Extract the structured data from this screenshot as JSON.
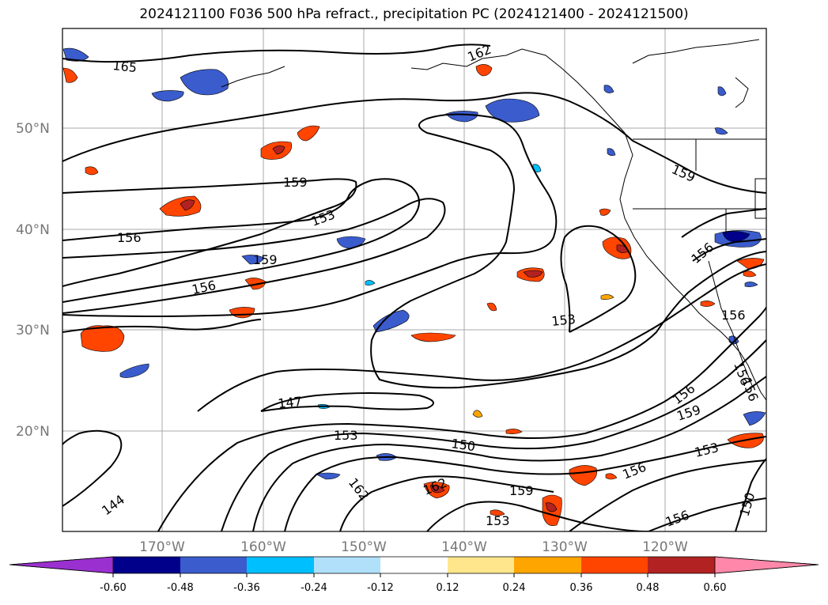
{
  "title": "2024121100 F036 500 hPa refract., precipitation PC (2024121400 - 2024121500)",
  "map": {
    "lat_labels": [
      "50°N",
      "40°N",
      "30°N",
      "20°N"
    ],
    "lon_labels": [
      "170°W",
      "160°W",
      "150°W",
      "140°W",
      "130°W",
      "120°W"
    ],
    "contour_labels": [
      {
        "text": "165"
      },
      {
        "text": "162"
      },
      {
        "text": "159"
      },
      {
        "text": "153"
      },
      {
        "text": "156"
      },
      {
        "text": "159"
      },
      {
        "text": "156"
      },
      {
        "text": "159"
      },
      {
        "text": "153"
      },
      {
        "text": "156"
      },
      {
        "text": "156"
      },
      {
        "text": "147"
      },
      {
        "text": "153"
      },
      {
        "text": "150"
      },
      {
        "text": "162"
      },
      {
        "text": "162"
      },
      {
        "text": "159"
      },
      {
        "text": "153"
      },
      {
        "text": "156"
      },
      {
        "text": "159"
      },
      {
        "text": "153"
      },
      {
        "text": "156"
      },
      {
        "text": "156"
      },
      {
        "text": "150"
      },
      {
        "text": "144"
      },
      {
        "text": "156"
      },
      {
        "text": "156"
      }
    ]
  },
  "colorbar": {
    "tick_labels": [
      "-0.60",
      "-0.48",
      "-0.36",
      "-0.24",
      "-0.12",
      "0.12",
      "0.24",
      "0.36",
      "0.48",
      "0.60"
    ],
    "colors": [
      "#9b30d0",
      "#00008b",
      "#3a5ccc",
      "#00bfff",
      "#b0e0fa",
      "#ffffff",
      "#ffe68c",
      "#ffa500",
      "#ff4500",
      "#b22222",
      "#ff88aa"
    ]
  },
  "colors": {
    "neg_dark": "#00008b",
    "neg_mid": "#3a5ccc",
    "neg_light": "#00bfff",
    "pos_light": "#ffe68c",
    "pos_mid": "#ffa500",
    "pos_strong": "#ff4500",
    "pos_dark": "#b22222"
  }
}
